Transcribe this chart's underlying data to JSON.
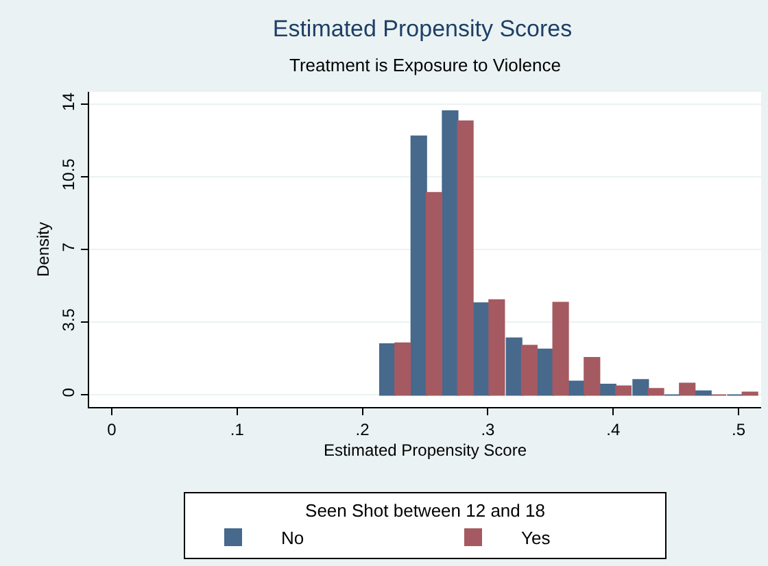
{
  "chart_data": {
    "type": "bar",
    "title": "Estimated Propensity Scores",
    "subtitle": "Treatment is Exposure to Violence",
    "xlabel": "Estimated Propensity Score",
    "ylabel": "Density",
    "legend_title": "Seen Shot between 12 and 18",
    "x": [
      0.226,
      0.251,
      0.276,
      0.301,
      0.327,
      0.352,
      0.377,
      0.402,
      0.428,
      0.453,
      0.478,
      0.503
    ],
    "series": [
      {
        "name": "No",
        "color": "#46698c",
        "values": [
          2.46,
          12.46,
          13.68,
          4.43,
          2.74,
          2.2,
          0.66,
          0.51,
          0.73,
          0,
          0.19,
          0
        ]
      },
      {
        "name": "Yes",
        "color": "#a45a60",
        "values": [
          2.5,
          9.74,
          13.19,
          4.58,
          2.38,
          4.45,
          1.8,
          0.43,
          0.3,
          0.56,
          0,
          0.13
        ]
      }
    ],
    "xlim": [
      -0.018,
      0.518
    ],
    "xticks": [
      {
        "value": 0,
        "label": "0"
      },
      {
        "value": 0.1,
        "label": ".1"
      },
      {
        "value": 0.2,
        "label": ".2"
      },
      {
        "value": 0.3,
        "label": ".3"
      },
      {
        "value": 0.4,
        "label": ".4"
      },
      {
        "value": 0.5,
        "label": ".5"
      }
    ],
    "ylim": [
      -0.58,
      14.6
    ],
    "yticks": [
      0,
      3.5,
      7,
      10.5,
      14
    ],
    "grid": "y",
    "legend": "bottom"
  }
}
